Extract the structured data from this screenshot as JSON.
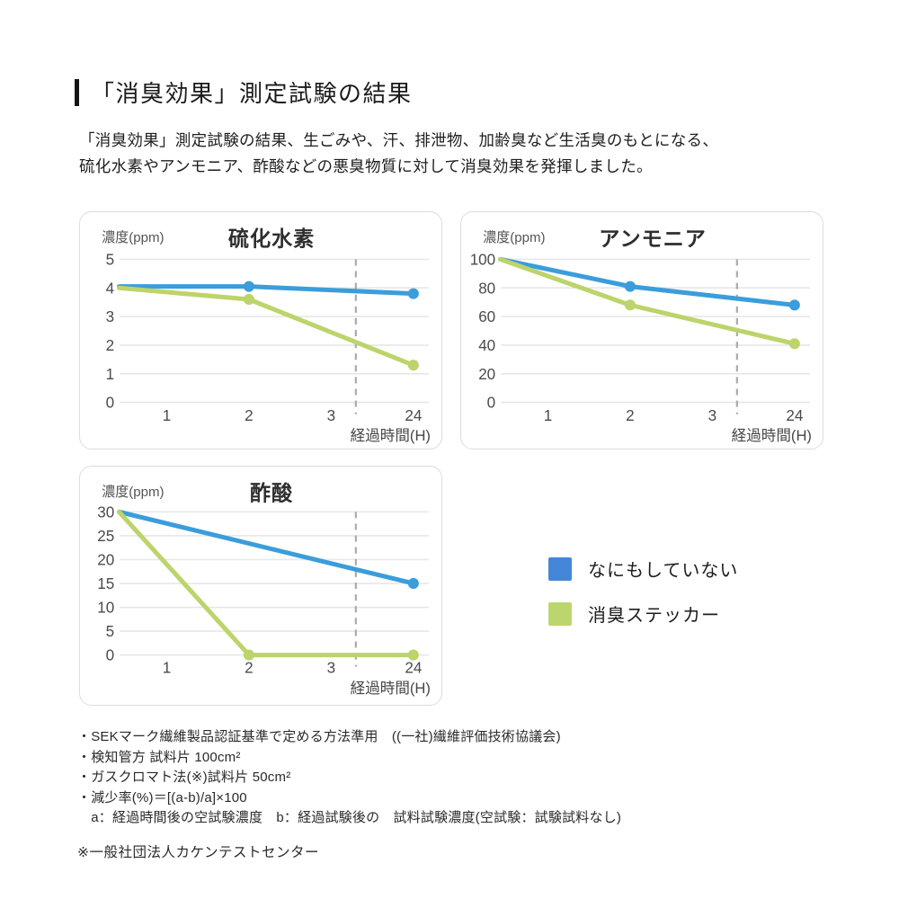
{
  "header": {
    "title": "「消臭効果」測定試験の結果"
  },
  "intro": {
    "line1": "「消臭効果」測定試験の結果、生ごみや、汗、排泄物、加齢臭など生活臭のもとになる、",
    "line2": "硫化水素やアンモニア、酢酸などの悪臭物質に対して消臭効果を発揮しました。"
  },
  "colors": {
    "line_blue": "#3B9DDB",
    "line_green": "#BCD46B",
    "legend_blue": "#4486D8",
    "legend_green": "#BDD56F",
    "gridline": "#E7E7E7",
    "break_line": "#ABABAB"
  },
  "chart_data": [
    {
      "type": "line",
      "id": "hydrogen-sulfide",
      "title": "硫化水素",
      "ylabel": "濃度(ppm)",
      "xlabel": "経過時間(H)",
      "ylim": [
        0,
        5
      ],
      "y_ticks": [
        5,
        4,
        3,
        2,
        1,
        0
      ],
      "x_ticks": [
        {
          "label": "1",
          "pos": 1
        },
        {
          "label": "2",
          "pos": 2
        },
        {
          "label": "3",
          "pos": 3
        },
        {
          "label": "24",
          "pos": 4
        }
      ],
      "break_line_pos": 3.3,
      "grid": true,
      "series": [
        {
          "name": "なにもしていない",
          "color": "#3B9DDB",
          "points": [
            {
              "t": 0,
              "v": 4.05,
              "pos": 0.42,
              "dot": false
            },
            {
              "t": 2,
              "v": 4.05,
              "pos": 2,
              "dot": true
            },
            {
              "t": 24,
              "v": 3.8,
              "pos": 4,
              "dot": true
            }
          ]
        },
        {
          "name": "消臭ステッカー",
          "color": "#BCD46B",
          "points": [
            {
              "t": 0,
              "v": 4.0,
              "pos": 0.42,
              "dot": false
            },
            {
              "t": 2,
              "v": 3.6,
              "pos": 2,
              "dot": true
            },
            {
              "t": 24,
              "v": 1.3,
              "pos": 4,
              "dot": true
            }
          ]
        }
      ]
    },
    {
      "type": "line",
      "id": "ammonia",
      "title": "アンモニア",
      "ylabel": "濃度(ppm)",
      "xlabel": "経過時間(H)",
      "ylim": [
        0,
        100
      ],
      "y_ticks": [
        100,
        80,
        60,
        40,
        20,
        0
      ],
      "x_ticks": [
        {
          "label": "1",
          "pos": 1
        },
        {
          "label": "2",
          "pos": 2
        },
        {
          "label": "3",
          "pos": 3
        },
        {
          "label": "24",
          "pos": 4
        }
      ],
      "break_line_pos": 3.3,
      "grid": true,
      "series": [
        {
          "name": "なにもしていない",
          "color": "#3B9DDB",
          "points": [
            {
              "t": 0,
              "v": 100,
              "pos": 0.42,
              "dot": false
            },
            {
              "t": 2,
              "v": 81,
              "pos": 2,
              "dot": true
            },
            {
              "t": 24,
              "v": 68,
              "pos": 4,
              "dot": true
            }
          ]
        },
        {
          "name": "消臭ステッカー",
          "color": "#BCD46B",
          "points": [
            {
              "t": 0,
              "v": 100,
              "pos": 0.42,
              "dot": false
            },
            {
              "t": 2,
              "v": 68,
              "pos": 2,
              "dot": true
            },
            {
              "t": 24,
              "v": 41,
              "pos": 4,
              "dot": true
            }
          ]
        }
      ]
    },
    {
      "type": "line",
      "id": "acetic-acid",
      "title": "酢酸",
      "ylabel": "濃度(ppm)",
      "xlabel": "経過時間(H)",
      "ylim": [
        0,
        30
      ],
      "y_ticks": [
        30,
        25,
        20,
        15,
        10,
        5,
        0
      ],
      "x_ticks": [
        {
          "label": "1",
          "pos": 1
        },
        {
          "label": "2",
          "pos": 2
        },
        {
          "label": "3",
          "pos": 3
        },
        {
          "label": "24",
          "pos": 4
        }
      ],
      "break_line_pos": 3.3,
      "grid": true,
      "series": [
        {
          "name": "なにもしていない",
          "color": "#3B9DDB",
          "points": [
            {
              "t": 0,
              "v": 30,
              "pos": 0.42,
              "dot": false
            },
            {
              "t": 24,
              "v": 15,
              "pos": 4,
              "dot": true
            }
          ]
        },
        {
          "name": "消臭ステッカー",
          "color": "#BCD46B",
          "points": [
            {
              "t": 0,
              "v": 30,
              "pos": 0.42,
              "dot": false
            },
            {
              "t": 2,
              "v": 0,
              "pos": 2,
              "dot": true
            },
            {
              "t": 24,
              "v": 0,
              "pos": 4,
              "dot": true
            }
          ]
        }
      ]
    }
  ],
  "legend": {
    "items": [
      {
        "label": "なにもしていない",
        "color": "#4486D8"
      },
      {
        "label": "消臭ステッカー",
        "color": "#BDD56F"
      }
    ]
  },
  "footnotes": {
    "items": [
      "・SEKマーク繊維製品認証基準で定める方法準用　((一社)繊維評価技術協議会)",
      "・検知管方 試料片 100cm²",
      "・ガスクロマト法(※)試料片 50cm²",
      "・減少率(%)＝[(a-b)/a]×100",
      "　a：経過時間後の空試験濃度　b：経過試験後の　試料試験濃度(空試験：試験試料なし)"
    ],
    "note": "※一般社団法人カケンテストセンター"
  }
}
